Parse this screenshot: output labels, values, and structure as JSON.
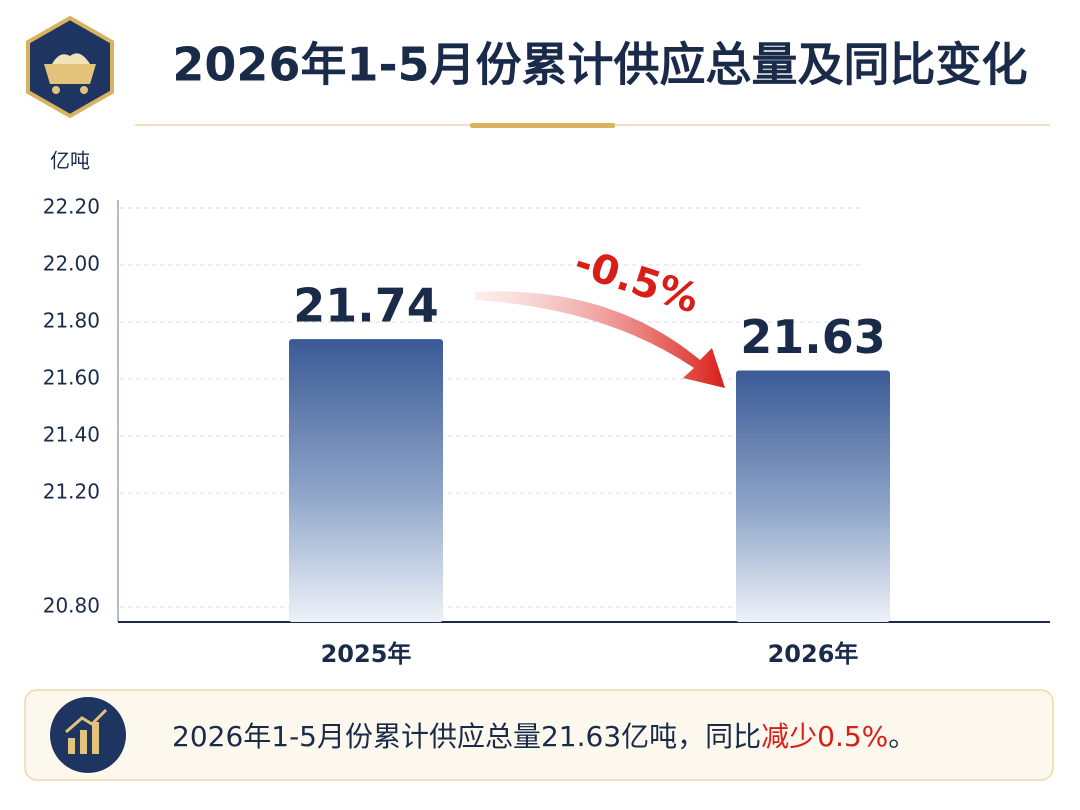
{
  "chart_data": {
    "type": "bar",
    "title": "2026年1-5月份累计供应总量及同比变化",
    "y_unit": "亿吨",
    "categories": [
      "2025年",
      "2026年"
    ],
    "values": [
      21.74,
      21.63
    ],
    "color": "#3a5a96",
    "ylim": [
      20.8,
      22.2
    ],
    "yticks": [
      {
        "value": 20.8,
        "label": "20.80"
      },
      {
        "value": 21.2,
        "label": "21.20"
      },
      {
        "value": 21.4,
        "label": "21.40"
      },
      {
        "value": 21.6,
        "label": "21.60"
      },
      {
        "value": 21.8,
        "label": "21.80"
      },
      {
        "value": 22.0,
        "label": "22.00"
      },
      {
        "value": 22.2,
        "label": "22.20"
      }
    ],
    "grid": true,
    "annotation": "-0.5%",
    "note": [
      "2026年1-5月份累计供应总量21.63亿吨，同比",
      "减少0.5%",
      "。"
    ]
  }
}
